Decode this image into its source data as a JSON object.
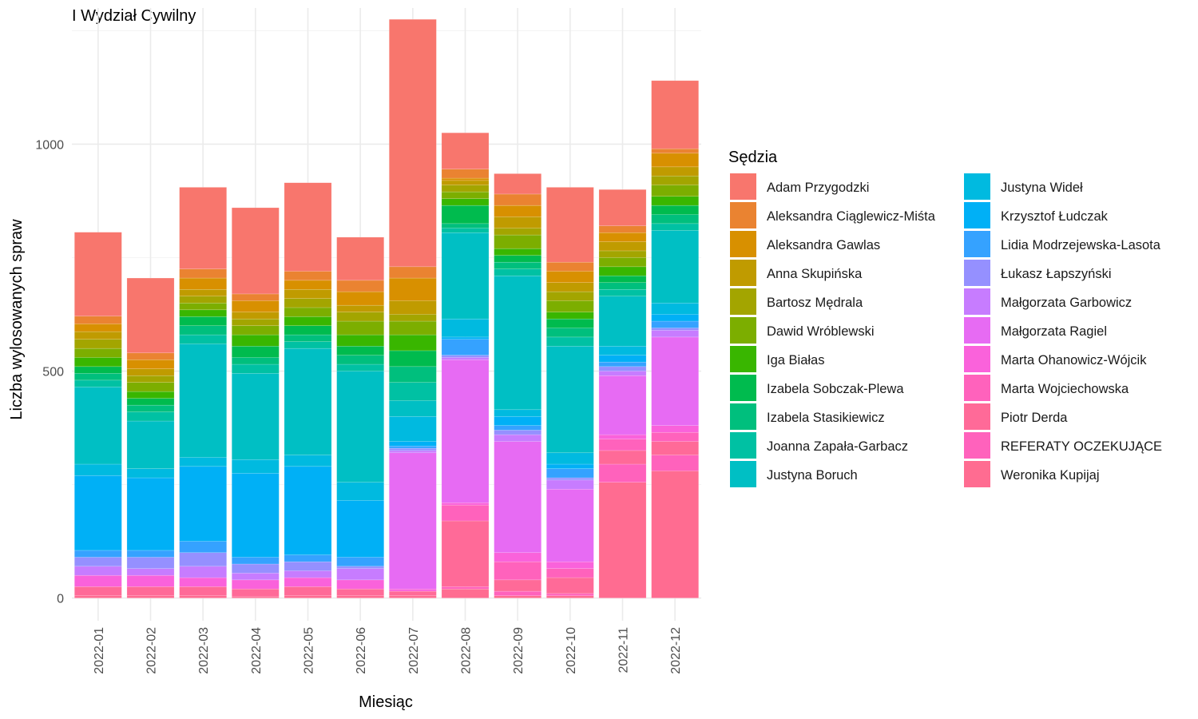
{
  "chart_data": {
    "type": "bar",
    "stacked": true,
    "title": "I Wydział Cywilny",
    "xlabel": "Miesiąc",
    "ylabel": "Liczba wylosowanych spraw",
    "legend_title": "Sędzia",
    "legend_position": "right",
    "grid": true,
    "ylim": [
      -50,
      1300
    ],
    "yticks": [
      0,
      500,
      1000
    ],
    "categories": [
      "2022-01",
      "2022-02",
      "2022-03",
      "2022-04",
      "2022-05",
      "2022-06",
      "2022-07",
      "2022-08",
      "2022-09",
      "2022-10",
      "2022-11",
      "2022-12"
    ],
    "series": [
      {
        "name": "Adam Przygodzki",
        "color": "#F8766D",
        "values": [
          185,
          165,
          180,
          190,
          195,
          95,
          545,
          80,
          45,
          165,
          80,
          150
        ]
      },
      {
        "name": "Aleksandra Ciąglewicz-Miśta",
        "color": "#EA8331",
        "values": [
          17,
          15,
          20,
          15,
          20,
          25,
          25,
          20,
          25,
          20,
          15,
          10
        ]
      },
      {
        "name": "Aleksandra Gawlas",
        "color": "#D89000",
        "values": [
          17,
          20,
          25,
          25,
          20,
          30,
          50,
          5,
          25,
          25,
          20,
          30
        ]
      },
      {
        "name": "Anna Skupińska",
        "color": "#C09B00",
        "values": [
          17,
          15,
          15,
          15,
          20,
          15,
          30,
          10,
          25,
          20,
          20,
          20
        ]
      },
      {
        "name": "Bartosz Mędrala",
        "color": "#A3A500",
        "values": [
          20,
          15,
          15,
          15,
          20,
          20,
          15,
          15,
          15,
          20,
          15,
          20
        ]
      },
      {
        "name": "Dawid Wróblewski",
        "color": "#7CAE00",
        "values": [
          20,
          20,
          15,
          20,
          20,
          30,
          30,
          15,
          30,
          25,
          20,
          25
        ]
      },
      {
        "name": "Iga Białas",
        "color": "#39B600",
        "values": [
          20,
          15,
          15,
          25,
          20,
          25,
          35,
          15,
          15,
          15,
          20,
          20
        ]
      },
      {
        "name": "Izabela Sobczak-Plewa",
        "color": "#00BB4E",
        "values": [
          15,
          15,
          20,
          25,
          20,
          20,
          35,
          40,
          15,
          20,
          15,
          20
        ]
      },
      {
        "name": "Izabela Stasikiewicz",
        "color": "#00BF7D",
        "values": [
          15,
          15,
          20,
          15,
          15,
          20,
          35,
          10,
          15,
          20,
          15,
          20
        ]
      },
      {
        "name": "Joanna Zapała-Garbacz",
        "color": "#00C1A3",
        "values": [
          15,
          20,
          20,
          20,
          15,
          15,
          40,
          10,
          15,
          20,
          15,
          15
        ]
      },
      {
        "name": "Justyna Boruch",
        "color": "#00BFC4",
        "values": [
          170,
          105,
          250,
          190,
          235,
          245,
          35,
          190,
          295,
          235,
          110,
          160
        ]
      },
      {
        "name": "Justyna Wideł",
        "color": "#00BAE0",
        "values": [
          25,
          20,
          20,
          30,
          25,
          40,
          55,
          40,
          15,
          25,
          20,
          25
        ]
      },
      {
        "name": "Krzysztof Łudczak",
        "color": "#00B0F6",
        "values": [
          165,
          160,
          165,
          185,
          195,
          125,
          10,
          5,
          20,
          10,
          15,
          15
        ]
      },
      {
        "name": "Lidia Modrzejewska-Lasota",
        "color": "#35A2FF",
        "values": [
          15,
          15,
          25,
          15,
          15,
          20,
          5,
          35,
          10,
          20,
          10,
          15
        ]
      },
      {
        "name": "Łukasz Łapszyński",
        "color": "#9590FF",
        "values": [
          20,
          25,
          30,
          20,
          20,
          5,
          5,
          5,
          10,
          5,
          10,
          5
        ]
      },
      {
        "name": "Małgorzata Garbowicz",
        "color": "#C77CFF",
        "values": [
          20,
          15,
          25,
          15,
          15,
          25,
          5,
          5,
          15,
          20,
          10,
          15
        ]
      },
      {
        "name": "Małgorzata Ragiel",
        "color": "#E76BF3",
        "values": [
          0,
          0,
          0,
          0,
          0,
          0,
          300,
          315,
          245,
          160,
          130,
          195
        ]
      },
      {
        "name": "Marta Ohanowicz-Wójcik",
        "color": "#FA62DB",
        "values": [
          25,
          25,
          20,
          20,
          20,
          20,
          5,
          5,
          20,
          15,
          10,
          15
        ]
      },
      {
        "name": "Marta Wojciechowska",
        "color": "#FF62BC",
        "values": [
          0,
          0,
          0,
          0,
          0,
          0,
          0,
          35,
          40,
          20,
          25,
          20
        ]
      },
      {
        "name": "Piotr Derda",
        "color": "#FF6A98",
        "values": [
          20,
          20,
          20,
          17,
          20,
          15,
          10,
          145,
          25,
          35,
          30,
          30
        ]
      },
      {
        "name": "REFERATY OCZEKUJĄCE",
        "color": "#FF62BC",
        "values": [
          0,
          0,
          0,
          0,
          0,
          0,
          0,
          5,
          10,
          5,
          40,
          35
        ]
      },
      {
        "name": "Weronika Kupijaj",
        "color": "#FF6C91",
        "values": [
          5,
          5,
          5,
          3,
          5,
          5,
          5,
          20,
          5,
          5,
          255,
          280
        ]
      }
    ]
  }
}
